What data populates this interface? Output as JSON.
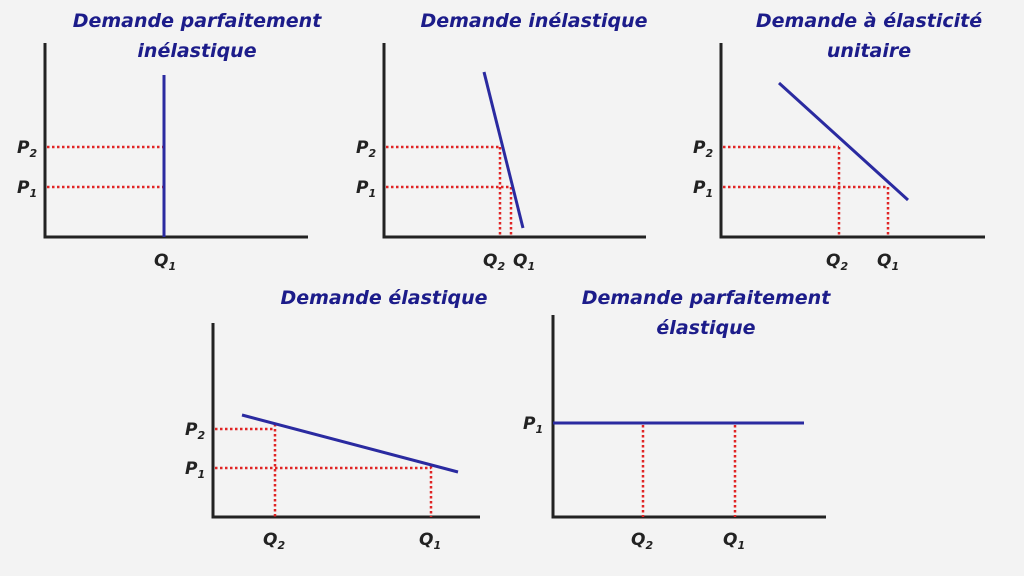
{
  "colors": {
    "title": "#1c1c8a",
    "demand_curve": "#2a2aa0",
    "guide_lines": "#e02424",
    "axes": "#222222",
    "background": "#f3f3f3"
  },
  "panels": [
    {
      "title_line1": "Demande parfaitement",
      "title_line2": "inélastique",
      "y_labels": [
        {
          "main": "P",
          "sub": "2"
        },
        {
          "main": "P",
          "sub": "1"
        }
      ],
      "x_labels": [
        {
          "main": "Q",
          "sub": "1"
        }
      ]
    },
    {
      "title_line1": "Demande inélastique",
      "title_line2": "",
      "y_labels": [
        {
          "main": "P",
          "sub": "2"
        },
        {
          "main": "P",
          "sub": "1"
        }
      ],
      "x_labels": [
        {
          "main": "Q",
          "sub": "2"
        },
        {
          "main": "Q",
          "sub": "1"
        }
      ]
    },
    {
      "title_line1": "Demande à élasticité",
      "title_line2": "unitaire",
      "y_labels": [
        {
          "main": "P",
          "sub": "2"
        },
        {
          "main": "P",
          "sub": "1"
        }
      ],
      "x_labels": [
        {
          "main": "Q",
          "sub": "2"
        },
        {
          "main": "Q",
          "sub": "1"
        }
      ]
    },
    {
      "title_line1": "Demande élastique",
      "title_line2": "",
      "y_labels": [
        {
          "main": "P",
          "sub": "2"
        },
        {
          "main": "P",
          "sub": "1"
        }
      ],
      "x_labels": [
        {
          "main": "Q",
          "sub": "2"
        },
        {
          "main": "Q",
          "sub": "1"
        }
      ]
    },
    {
      "title_line1": "Demande parfaitement",
      "title_line2": "élastique",
      "y_labels": [
        {
          "main": "P",
          "sub": "1"
        }
      ],
      "x_labels": [
        {
          "main": "Q",
          "sub": "2"
        },
        {
          "main": "Q",
          "sub": "1"
        }
      ]
    }
  ]
}
